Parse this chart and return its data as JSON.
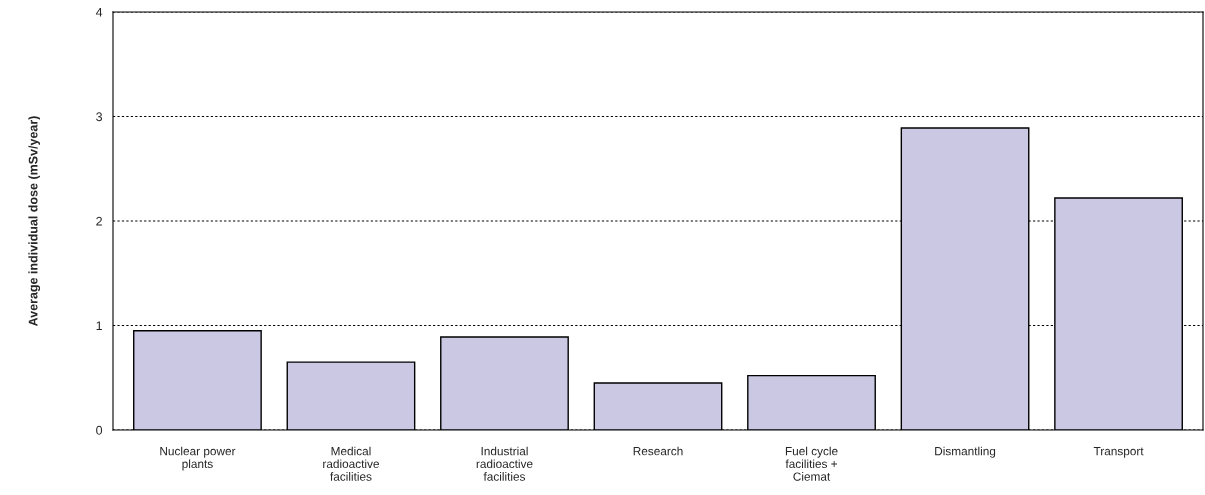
{
  "chart_data": {
    "type": "bar",
    "ylabel": "Average individual dose (mSv/year)",
    "categories": [
      "Nuclear power\nplants",
      "Medical\nradioactive\nfacilities",
      "Industrial\nradioactive\nfacilities",
      "Research",
      "Fuel cycle\nfacilities +\nCiemat",
      "Dismantling",
      "Transport"
    ],
    "values": [
      0.95,
      0.65,
      0.89,
      0.45,
      0.52,
      2.89,
      2.22
    ],
    "color": "#cbc8e4",
    "ylim": [
      0,
      4
    ],
    "yticks": [
      0,
      1,
      2,
      3,
      4
    ],
    "grid": "y",
    "legend": false
  }
}
